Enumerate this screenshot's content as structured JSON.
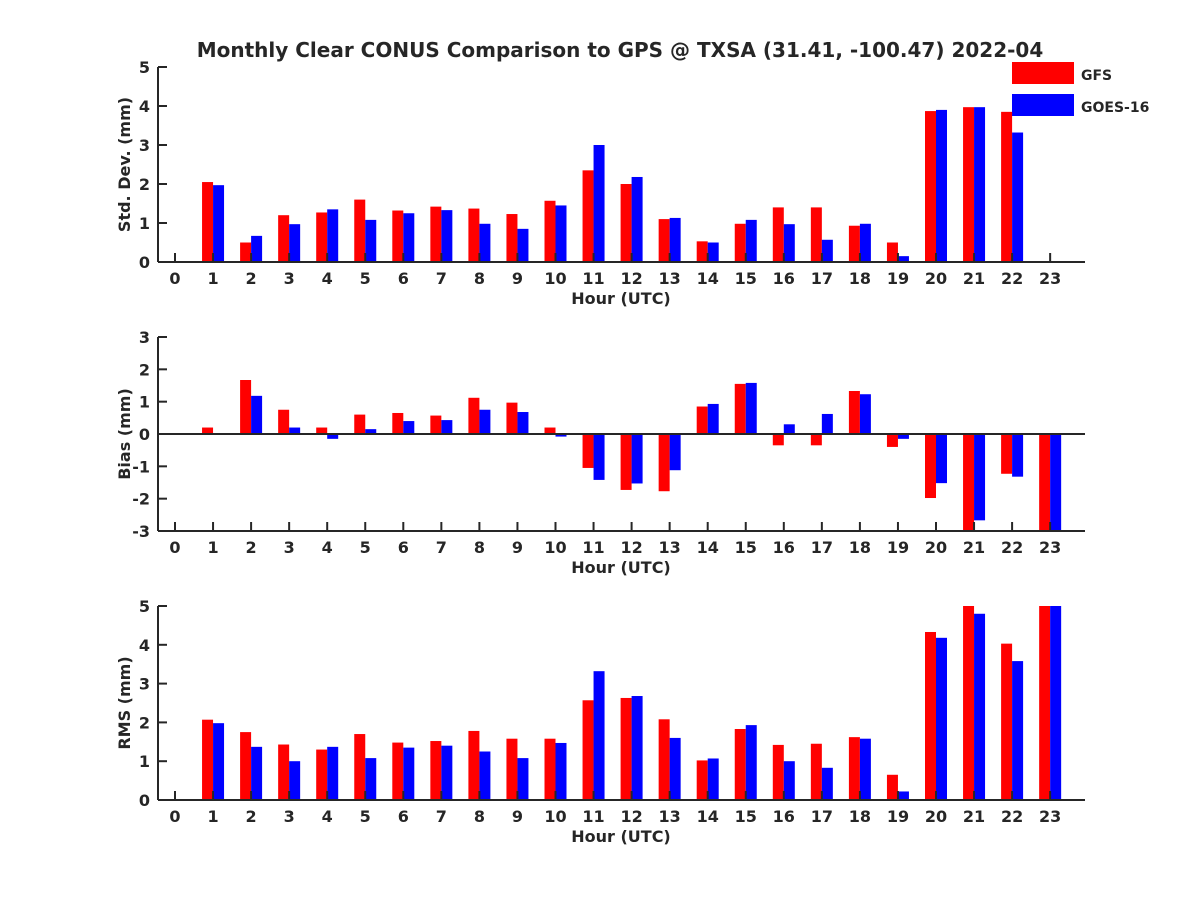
{
  "title": "Monthly Clear CONUS Comparison to GPS @ TXSA (31.41, -100.47) 2022-04",
  "colors": {
    "GFS": "#ff0000",
    "GOES-16": "#0000ff",
    "axis": "#262626"
  },
  "legend": [
    {
      "name": "GFS",
      "color": "#ff0000"
    },
    {
      "name": "GOES-16",
      "color": "#0000ff"
    }
  ],
  "chart_data": [
    {
      "type": "bar",
      "ylabel": "Std. Dev. (mm)",
      "xlabel": "Hour (UTC)",
      "ylim": [
        0,
        5
      ],
      "yticks": [
        0,
        1,
        2,
        3,
        4,
        5
      ],
      "categories": [
        "0",
        "1",
        "2",
        "3",
        "4",
        "5",
        "6",
        "7",
        "8",
        "9",
        "10",
        "11",
        "12",
        "13",
        "14",
        "15",
        "16",
        "17",
        "18",
        "19",
        "20",
        "21",
        "22",
        "23"
      ],
      "legend_position": "top-right",
      "series": [
        {
          "name": "GFS",
          "values": [
            null,
            2.05,
            0.5,
            1.2,
            1.27,
            1.6,
            1.32,
            1.42,
            1.37,
            1.23,
            1.57,
            2.35,
            2.0,
            1.1,
            0.53,
            0.98,
            1.4,
            1.4,
            0.93,
            0.5,
            3.87,
            3.97,
            3.85,
            null
          ]
        },
        {
          "name": "GOES-16",
          "values": [
            null,
            1.97,
            0.67,
            0.97,
            1.35,
            1.08,
            1.25,
            1.33,
            0.98,
            0.85,
            1.45,
            3.0,
            2.18,
            1.13,
            0.5,
            1.08,
            0.97,
            0.57,
            0.98,
            0.15,
            3.9,
            3.97,
            3.32,
            null
          ]
        }
      ]
    },
    {
      "type": "bar",
      "ylabel": "Bias (mm)",
      "xlabel": "Hour (UTC)",
      "ylim": [
        -3,
        3
      ],
      "yticks": [
        -3,
        -2,
        -1,
        0,
        1,
        2,
        3
      ],
      "categories": [
        "0",
        "1",
        "2",
        "3",
        "4",
        "5",
        "6",
        "7",
        "8",
        "9",
        "10",
        "11",
        "12",
        "13",
        "14",
        "15",
        "16",
        "17",
        "18",
        "19",
        "20",
        "21",
        "22",
        "23"
      ],
      "series": [
        {
          "name": "GFS",
          "values": [
            null,
            0.2,
            1.67,
            0.75,
            0.2,
            0.6,
            0.65,
            0.57,
            1.12,
            0.97,
            0.2,
            -1.05,
            -1.73,
            -1.77,
            0.85,
            1.55,
            -0.35,
            -0.35,
            1.33,
            -0.4,
            -1.98,
            -3.0,
            -1.23,
            -3.0
          ]
        },
        {
          "name": "GOES-16",
          "values": [
            null,
            null,
            1.18,
            0.2,
            -0.15,
            0.15,
            0.4,
            0.43,
            0.75,
            0.68,
            -0.08,
            -1.42,
            -1.53,
            -1.12,
            0.93,
            1.58,
            0.3,
            0.62,
            1.23,
            -0.15,
            -1.52,
            -2.67,
            -1.32,
            -3.0
          ]
        }
      ]
    },
    {
      "type": "bar",
      "ylabel": "RMS (mm)",
      "xlabel": "Hour (UTC)",
      "ylim": [
        0,
        5
      ],
      "yticks": [
        0,
        1,
        2,
        3,
        4,
        5
      ],
      "categories": [
        "0",
        "1",
        "2",
        "3",
        "4",
        "5",
        "6",
        "7",
        "8",
        "9",
        "10",
        "11",
        "12",
        "13",
        "14",
        "15",
        "16",
        "17",
        "18",
        "19",
        "20",
        "21",
        "22",
        "23"
      ],
      "series": [
        {
          "name": "GFS",
          "values": [
            null,
            2.07,
            1.75,
            1.43,
            1.3,
            1.7,
            1.48,
            1.52,
            1.78,
            1.58,
            1.58,
            2.57,
            2.63,
            2.08,
            1.02,
            1.83,
            1.42,
            1.45,
            1.62,
            0.65,
            4.33,
            5.0,
            4.03,
            5.0
          ]
        },
        {
          "name": "GOES-16",
          "values": [
            null,
            1.98,
            1.37,
            1.0,
            1.37,
            1.08,
            1.35,
            1.4,
            1.25,
            1.08,
            1.47,
            3.32,
            2.68,
            1.6,
            1.07,
            1.93,
            1.0,
            0.83,
            1.58,
            0.22,
            4.18,
            4.8,
            3.58,
            5.0
          ]
        }
      ]
    }
  ]
}
